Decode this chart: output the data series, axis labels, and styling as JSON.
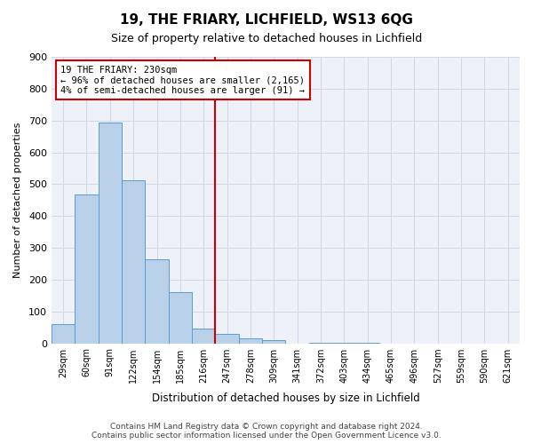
{
  "title": "19, THE FRIARY, LICHFIELD, WS13 6QG",
  "subtitle": "Size of property relative to detached houses in Lichfield",
  "xlabel": "Distribution of detached houses by size in Lichfield",
  "ylabel": "Number of detached properties",
  "bar_values": [
    60,
    467,
    693,
    512,
    263,
    161,
    45,
    29,
    15,
    11,
    0,
    2,
    1,
    1,
    0,
    0,
    0,
    0,
    0,
    0
  ],
  "bin_labels": [
    "29sqm",
    "60sqm",
    "91sqm",
    "122sqm",
    "154sqm",
    "185sqm",
    "216sqm",
    "247sqm",
    "278sqm",
    "309sqm",
    "341sqm",
    "372sqm",
    "403sqm",
    "434sqm",
    "465sqm",
    "496sqm",
    "527sqm",
    "559sqm",
    "590sqm",
    "621sqm"
  ],
  "bar_color": "#b8d0e8",
  "bar_edge_color": "#5b9bd5",
  "vline_x": 6.5,
  "vline_color": "#cc0000",
  "annotation_box_text": "19 THE FRIARY: 230sqm\n← 96% of detached houses are smaller (2,165)\n4% of semi-detached houses are larger (91) →",
  "annotation_box_color": "#cc0000",
  "ylim": [
    0,
    900
  ],
  "yticks": [
    0,
    100,
    200,
    300,
    400,
    500,
    600,
    700,
    800,
    900
  ],
  "grid_color": "#d0d8e8",
  "footnote": "Contains HM Land Registry data © Crown copyright and database right 2024.\nContains public sector information licensed under the Open Government Licence v3.0.",
  "bg_color": "#eef2f8"
}
